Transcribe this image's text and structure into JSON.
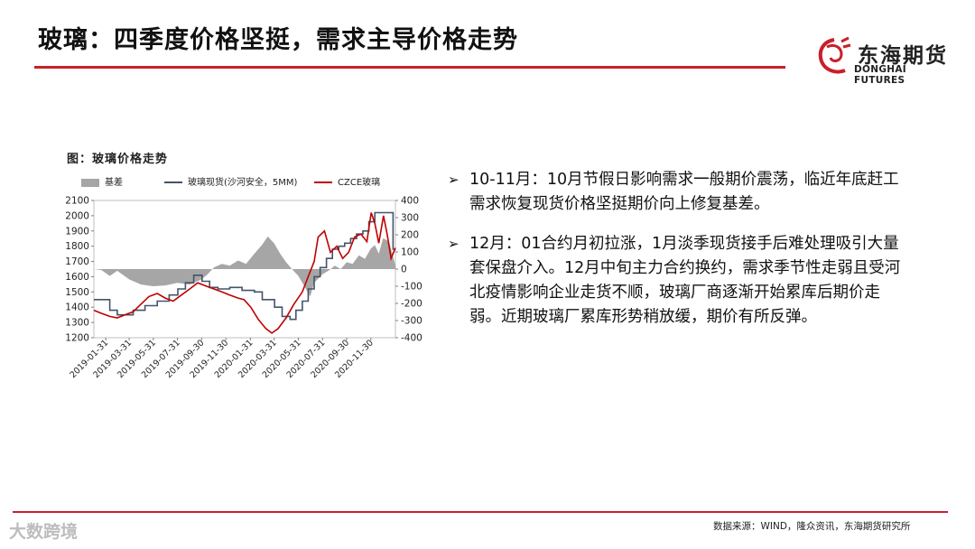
{
  "header": {
    "title": "玻璃：四季度价格坚挺，需求主导价格走势",
    "logo_cn": "东海期货",
    "logo_en": "DONGHAI FUTURES"
  },
  "figure": {
    "caption": "图：玻璃价格走势"
  },
  "chart_data": {
    "type": "line",
    "legend": [
      "基差",
      "玻璃现货(沙河安全，5MM)",
      "CZCE玻璃"
    ],
    "legend_placement": "top",
    "x_ticks": [
      "2019-01-31",
      "2019-03-31",
      "2019-05-31",
      "2019-07-31",
      "2019-09-30",
      "2019-11-30",
      "2020-01-31",
      "2020-03-31",
      "2020-05-31",
      "2020-07-31",
      "2020-09-30",
      "2020-11-30"
    ],
    "x_range": [
      "2019-01-01",
      "2021-01-31"
    ],
    "y_left": {
      "ticks": [
        1200,
        1300,
        1400,
        1500,
        1600,
        1700,
        1800,
        1900,
        2000,
        2100
      ],
      "range": [
        1200,
        2100
      ]
    },
    "y_right": {
      "ticks": [
        -400,
        -300,
        -200,
        -100,
        0,
        100,
        200,
        300,
        400
      ],
      "range": [
        -400,
        400
      ]
    },
    "colors": {
      "basis": "#a6a6a6",
      "spot": "#44546a",
      "futures": "#c00000"
    },
    "series": [
      {
        "name": "基差",
        "type": "area",
        "axis": "right",
        "points": [
          [
            "2019-01-01",
            0
          ],
          [
            "2019-01-20",
            -5
          ],
          [
            "2019-02-10",
            -40
          ],
          [
            "2019-03-01",
            -10
          ],
          [
            "2019-03-31",
            -60
          ],
          [
            "2019-04-30",
            -90
          ],
          [
            "2019-05-31",
            -100
          ],
          [
            "2019-06-30",
            -95
          ],
          [
            "2019-07-31",
            -80
          ],
          [
            "2019-08-31",
            -90
          ],
          [
            "2019-09-30",
            -60
          ],
          [
            "2019-10-15",
            -30
          ],
          [
            "2019-10-31",
            10
          ],
          [
            "2019-11-20",
            30
          ],
          [
            "2019-12-10",
            20
          ],
          [
            "2019-12-31",
            50
          ],
          [
            "2020-01-20",
            30
          ],
          [
            "2020-02-10",
            90
          ],
          [
            "2020-02-29",
            140
          ],
          [
            "2020-03-15",
            190
          ],
          [
            "2020-03-31",
            150
          ],
          [
            "2020-04-15",
            90
          ],
          [
            "2020-04-30",
            40
          ],
          [
            "2020-05-15",
            0
          ],
          [
            "2020-05-31",
            -40
          ],
          [
            "2020-06-15",
            -100
          ],
          [
            "2020-06-30",
            -160
          ],
          [
            "2020-07-10",
            -80
          ],
          [
            "2020-07-31",
            -30
          ],
          [
            "2020-08-15",
            -10
          ],
          [
            "2020-08-31",
            20
          ],
          [
            "2020-09-15",
            0
          ],
          [
            "2020-09-30",
            40
          ],
          [
            "2020-10-15",
            30
          ],
          [
            "2020-10-31",
            80
          ],
          [
            "2020-11-15",
            60
          ],
          [
            "2020-11-30",
            120
          ],
          [
            "2020-12-10",
            140
          ],
          [
            "2020-12-20",
            90
          ],
          [
            "2020-12-31",
            180
          ],
          [
            "2021-01-15",
            160
          ],
          [
            "2021-01-31",
            20
          ]
        ]
      },
      {
        "name": "玻璃现货(沙河安全，5MM)",
        "type": "step",
        "axis": "left",
        "points": [
          [
            "2019-01-01",
            1450
          ],
          [
            "2019-02-10",
            1380
          ],
          [
            "2019-03-01",
            1350
          ],
          [
            "2019-04-10",
            1380
          ],
          [
            "2019-05-10",
            1410
          ],
          [
            "2019-06-10",
            1440
          ],
          [
            "2019-07-10",
            1480
          ],
          [
            "2019-08-01",
            1520
          ],
          [
            "2019-08-20",
            1560
          ],
          [
            "2019-09-10",
            1610
          ],
          [
            "2019-10-01",
            1570
          ],
          [
            "2019-10-20",
            1530
          ],
          [
            "2019-11-10",
            1520
          ],
          [
            "2019-12-10",
            1530
          ],
          [
            "2020-01-10",
            1510
          ],
          [
            "2020-02-10",
            1500
          ],
          [
            "2020-03-01",
            1450
          ],
          [
            "2020-04-01",
            1400
          ],
          [
            "2020-04-20",
            1340
          ],
          [
            "2020-05-10",
            1320
          ],
          [
            "2020-05-25",
            1380
          ],
          [
            "2020-06-10",
            1440
          ],
          [
            "2020-06-25",
            1520
          ],
          [
            "2020-07-10",
            1600
          ],
          [
            "2020-07-25",
            1660
          ],
          [
            "2020-08-10",
            1720
          ],
          [
            "2020-08-25",
            1780
          ],
          [
            "2020-09-10",
            1800
          ],
          [
            "2020-09-25",
            1820
          ],
          [
            "2020-10-10",
            1850
          ],
          [
            "2020-10-25",
            1880
          ],
          [
            "2020-11-10",
            1900
          ],
          [
            "2020-11-25",
            1960
          ],
          [
            "2020-12-10",
            2020
          ],
          [
            "2021-01-10",
            2020
          ],
          [
            "2021-01-25",
            1780
          ]
        ]
      },
      {
        "name": "CZCE玻璃",
        "type": "line",
        "axis": "left",
        "points": [
          [
            "2019-01-01",
            1380
          ],
          [
            "2019-01-20",
            1360
          ],
          [
            "2019-02-10",
            1340
          ],
          [
            "2019-03-01",
            1330
          ],
          [
            "2019-03-20",
            1350
          ],
          [
            "2019-04-10",
            1370
          ],
          [
            "2019-04-30",
            1420
          ],
          [
            "2019-05-20",
            1470
          ],
          [
            "2019-06-10",
            1490
          ],
          [
            "2019-06-30",
            1460
          ],
          [
            "2019-07-20",
            1440
          ],
          [
            "2019-08-10",
            1480
          ],
          [
            "2019-08-31",
            1520
          ],
          [
            "2019-09-20",
            1560
          ],
          [
            "2019-10-10",
            1540
          ],
          [
            "2019-10-31",
            1520
          ],
          [
            "2019-11-20",
            1500
          ],
          [
            "2019-12-10",
            1480
          ],
          [
            "2019-12-31",
            1460
          ],
          [
            "2020-01-15",
            1450
          ],
          [
            "2020-02-01",
            1400
          ],
          [
            "2020-02-20",
            1320
          ],
          [
            "2020-03-10",
            1260
          ],
          [
            "2020-03-25",
            1230
          ],
          [
            "2020-04-10",
            1260
          ],
          [
            "2020-04-30",
            1330
          ],
          [
            "2020-05-20",
            1420
          ],
          [
            "2020-06-10",
            1500
          ],
          [
            "2020-06-25",
            1600
          ],
          [
            "2020-07-10",
            1700
          ],
          [
            "2020-07-20",
            1860
          ],
          [
            "2020-08-05",
            1900
          ],
          [
            "2020-08-20",
            1760
          ],
          [
            "2020-09-05",
            1800
          ],
          [
            "2020-09-20",
            1720
          ],
          [
            "2020-10-05",
            1760
          ],
          [
            "2020-10-20",
            1860
          ],
          [
            "2020-11-05",
            1880
          ],
          [
            "2020-11-20",
            1830
          ],
          [
            "2020-12-01",
            2020
          ],
          [
            "2020-12-10",
            1950
          ],
          [
            "2020-12-20",
            1820
          ],
          [
            "2021-01-01",
            2000
          ],
          [
            "2021-01-10",
            1880
          ],
          [
            "2021-01-20",
            1720
          ],
          [
            "2021-01-31",
            1790
          ]
        ]
      }
    ]
  },
  "bullets": [
    {
      "marker": "➢",
      "text": "10-11月：10月节假日影响需求一般期价震荡，临近年底赶工需求恢复现货价格坚挺期价向上修复基差。"
    },
    {
      "marker": "➢",
      "text": "12月：01合约月初拉涨，1月淡季现货接手后难处理吸引大量套保盘介入。12月中旬主力合约换约，需求季节性走弱且受河北疫情影响企业走货不顺，玻璃厂商逐渐开始累库后期价走弱。近期玻璃厂累库形势稍放缓，期价有所反弹。"
    }
  ],
  "footer": {
    "source": "数据来源：WIND，隆众资讯，东海期货研究所",
    "watermark": "大数跨境"
  }
}
